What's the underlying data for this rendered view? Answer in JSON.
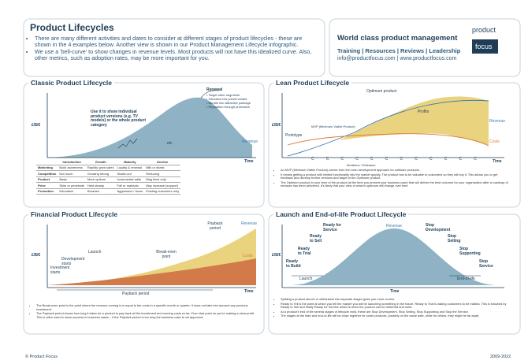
{
  "header": {
    "title": "Product Lifecycles",
    "bullets": [
      "There are many different activities and dates to consider at different stages of product lifecycles - these are shown in the 4 examples below. Another view is shown in our Product Management Lifecycle infographic.",
      "We use a 'bell-curve' to show changes in revenue levels. Most products will not have this idealized curve. Also, other metrics, such as adoption rates, may be more important for you."
    ]
  },
  "brand": {
    "tagline": "World class product management",
    "links": "Training | Resources | Reviews | Leadership",
    "contact": "info@productfocus.com | www.productfocus.com",
    "logo_top": "product",
    "logo_bottom": "focus"
  },
  "classic": {
    "title": "Classic Product Lifecycle",
    "y_label": "£/$/€",
    "x_label": "Time",
    "revenue": "Revenue",
    "note": "Use it to show individual product versions (e.g. TV models) or the whole product category",
    "renewal": "Renewal",
    "renewal_items": [
      "Target other segments",
      "Introduce low priced variant",
      "Bundle into attractive package",
      "Reposition through promotion"
    ],
    "etc": "etc",
    "table": {
      "header": [
        "Introduction",
        "Growth",
        "Maturity",
        "Decline"
      ],
      "rows": [
        [
          "Marketing",
          "Build awareness",
          "Rapidly grow sales",
          "Loyalty & renewal",
          "Milk or divest"
        ],
        [
          "Competition",
          "Not much",
          "Growing strong",
          "Shake-out",
          "Reducing"
        ],
        [
          "Product",
          "Basic",
          "More options",
          "Incremental adds",
          "Mag fixes only"
        ],
        [
          "Price",
          "Skim or penetrate",
          "Held steady",
          "Fall or maintain",
          "May increase (support)"
        ],
        [
          "Promotion",
          "Education",
          "Broaden",
          "Aggressive / focus",
          "Existing customers only"
        ]
      ]
    }
  },
  "lean": {
    "title": "Lean Product Lifecycle",
    "y_label": "£/$/€",
    "optimum": "Optimum product",
    "profits": "Profits",
    "revenue": "Revenue",
    "costs": "Costs",
    "mvp": "MVP (Minimum Viable Product)",
    "prototype": "Prototype",
    "iterations": "Iterations / Releases",
    "x_label": "Time",
    "iteration_markers": [
      "C",
      "C",
      "C",
      "C",
      "C",
      "C",
      "C",
      "C",
      "C",
      "C",
      "C",
      "C"
    ],
    "bullets": [
      "An MVP (Minimum Viable Product) comes from the Lean development approach for software products.",
      "It means getting a product with limited functionality into the market quickly. The product has to be valuable to customers so they will buy it. This allows you to get feedback and develop further versions and target to the Optimum product.",
      "The Optimum product in your view of the product (at the time you present your business case) that will deliver the best outcome for your organization after a roadmap of releases has been delivered. It's likely that your view of what is optimum will change over time."
    ]
  },
  "financial": {
    "title": "Financial Product Lifecycle",
    "y_label": "£/$/€",
    "x_label": "Time",
    "payback_top": "Payback period",
    "payback_bottom": "Payback period",
    "revenue": "Revenue",
    "costs": "Costs",
    "launch": "Launch",
    "development": "Development starts",
    "investment": "Investment starts",
    "break_even": "Break-even point",
    "bullets": [
      "The Break-even point is the point where the revenue coming in is equal to the costs in a specific month or quarter. It does not take into account any previous investment.",
      "The Payback period shows how long it takes for a product to pay back all the investment and running costs so far. From that point on you're making a clear profit. This is often used to show success in business cases – if the Payback period is too long the business case is not approved."
    ]
  },
  "eol": {
    "title": "Launch and End-of-life Product Lifecycle",
    "y_label": "£/$/€",
    "x_label": "Time",
    "revenue": "Revenue",
    "ready_build": "Ready to Build",
    "ready_trial": "Ready to Trial",
    "ready_sell": "Ready to Sell",
    "ready_service": "Ready for Service",
    "stop_dev": "Stop Development",
    "stop_sell": "Stop Selling",
    "stop_support": "Stop Supporting",
    "stop_service": "Stop Service",
    "launch": "Launch",
    "eol": "End-of-life",
    "bullets": [
      "Splitting a product launch or withdrawal into separate stages gives you more control.",
      "Ready to Tell is the point at which you tell the market you will be launching something in the future. Ready to Trial is asking customers to be trialists. This is followed by Ready to Sell and finally Ready for Service which is when the product can be delivered and used.",
      "At a product's end of life several stages of lifecycle exist, these are Stop Development, Stop Selling, Stop Supporting and Stop the Service.",
      "The stages at the start and end-of-life will be close together for some products, possibly on the same date, while for others, they might be far apart."
    ]
  },
  "footer": {
    "left": "© Product Focus",
    "right": "2009-2022"
  }
}
